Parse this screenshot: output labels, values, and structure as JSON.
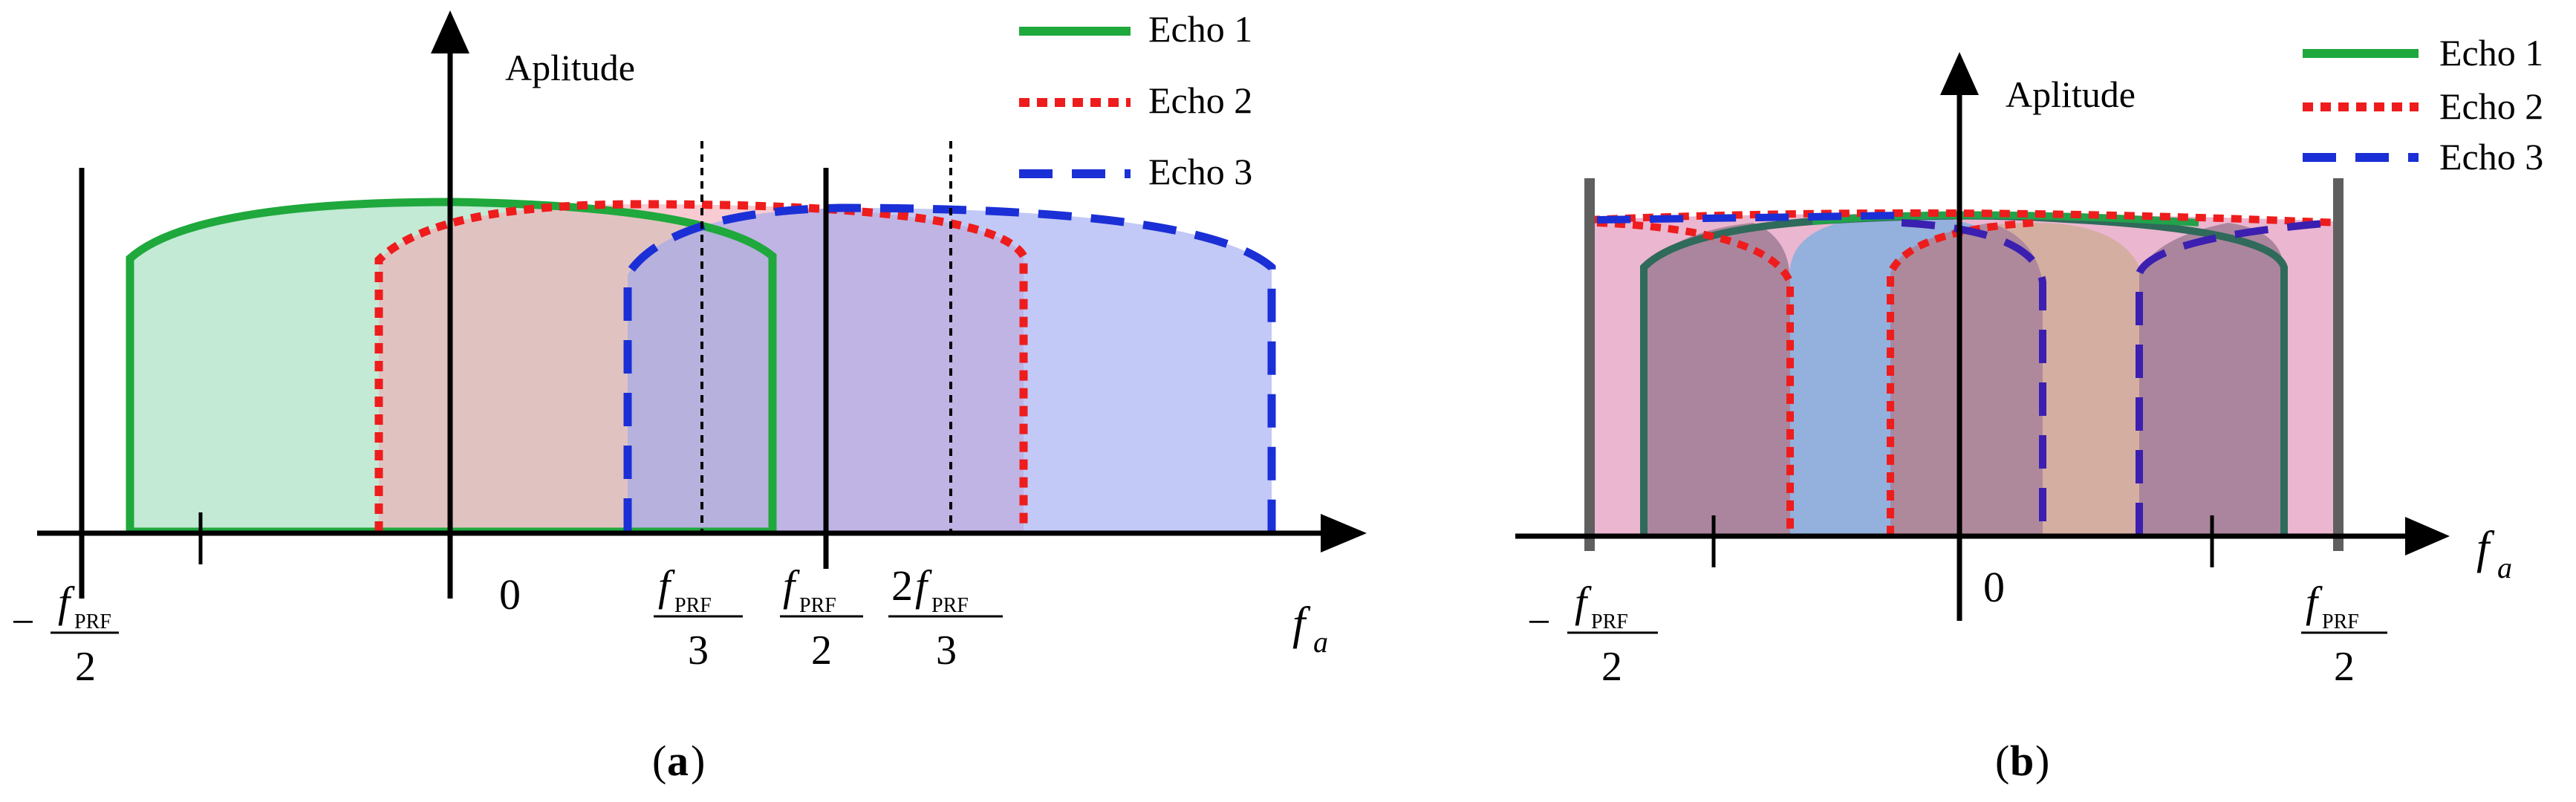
{
  "colors": {
    "echo1": "#1fa83c",
    "echo2": "#ee1c1c",
    "echo3": "#1b2fd6",
    "fill1": "#bfe9d3",
    "fill2": "#f4b8c0",
    "fill3": "#bcc2f5",
    "axis": "#000000"
  },
  "panel_a": {
    "caption_open": "(",
    "caption_letter": "a",
    "caption_close": ")",
    "ylabel": "Aplitude",
    "xlabel_f": "f",
    "xlabel_sub": "a",
    "zero": "0",
    "neg_sign": "−",
    "f": "f",
    "prf": "PRF",
    "two_prefix": "2",
    "den2": "2",
    "den3": "3"
  },
  "panel_b": {
    "caption_open": "(",
    "caption_letter": "b",
    "caption_close": ")",
    "ylabel": "Aplitude",
    "xlabel_f": "f",
    "xlabel_sub": "a",
    "zero": "0",
    "neg_sign": "−",
    "f": "f",
    "prf": "PRF",
    "den2": "2"
  },
  "legend": {
    "items": [
      {
        "label": "Echo 1",
        "style": "solid",
        "color": "#1fa83c"
      },
      {
        "label": "Echo 2",
        "style": "dotted",
        "color": "#ee1c1c"
      },
      {
        "label": "Echo 3",
        "style": "dashed",
        "color": "#1b2fd6"
      }
    ]
  }
}
